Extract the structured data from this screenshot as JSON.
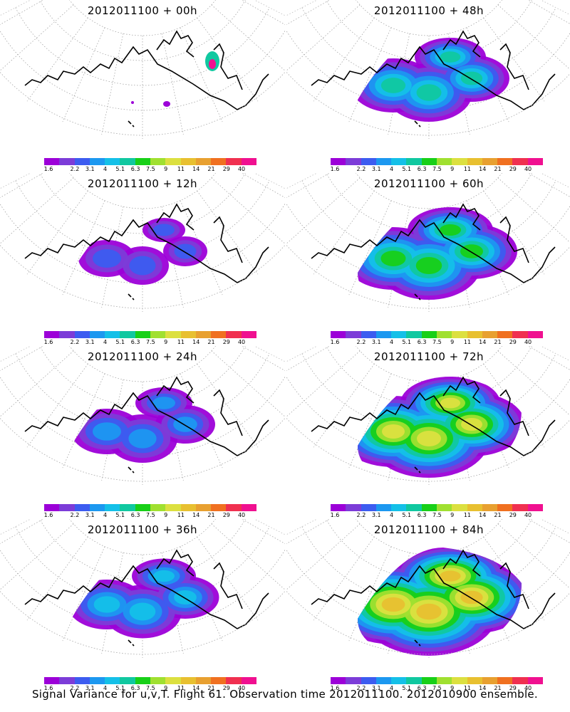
{
  "panels": [
    {
      "title": "2012011100 + 00h",
      "intensity": 0
    },
    {
      "title": "2012011100 + 48h",
      "intensity": 3
    },
    {
      "title": "2012011100 + 12h",
      "intensity": 1
    },
    {
      "title": "2012011100 + 60h",
      "intensity": 4
    },
    {
      "title": "2012011100 + 24h",
      "intensity": 2
    },
    {
      "title": "2012011100 + 72h",
      "intensity": 5
    },
    {
      "title": "2012011100 + 36h",
      "intensity": 2.5
    },
    {
      "title": "2012011100 + 84h",
      "intensity": 6
    }
  ],
  "colorbar": {
    "labels": [
      "1.6",
      "2.2",
      "3.1",
      "4",
      "5.1",
      "6.3",
      "7.5",
      "9",
      "11",
      "14",
      "21",
      "29",
      "40"
    ],
    "colors": [
      "#9c00d8",
      "#7c3cd8",
      "#3c5cf0",
      "#1c98f0",
      "#14c0e8",
      "#10c8a0",
      "#18d018",
      "#a0e030",
      "#dce040",
      "#e8c030",
      "#e8a030",
      "#f07020",
      "#f03050",
      "#f01090"
    ]
  },
  "footer": "Signal Variance for u,v,T. Flight 61. Observation time 2012011100. 2012010900 ensemble."
}
